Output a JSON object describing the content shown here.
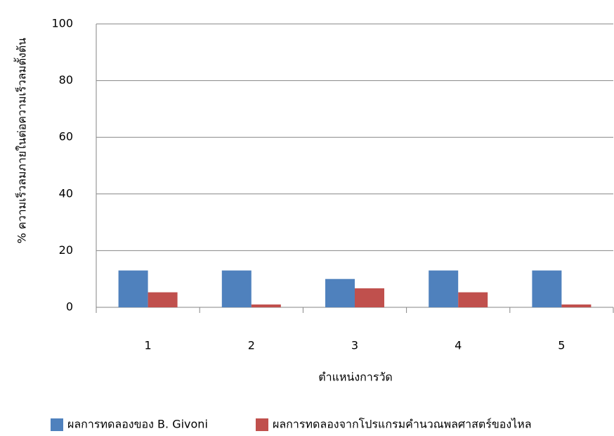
{
  "chart_data": {
    "type": "bar",
    "y_label": "% ความเร็วลมภายในต่อความเร็วลมตั้งต้น",
    "x_label": "ตำแหน่งการวัด",
    "categories": [
      "1",
      "2",
      "3",
      "4",
      "5"
    ],
    "series": [
      {
        "name": "ผลการทดลองของ B. Givoni",
        "color": "#4f81bd",
        "values": [
          13,
          13,
          10,
          13,
          13
        ]
      },
      {
        "name": "ผลการทดลองจากโปรแกรมคำนวณพลศาสตร์ของไหล",
        "color": "#c0504d",
        "values": [
          5.3,
          1,
          6.7,
          5.3,
          1
        ]
      }
    ],
    "ylim": [
      0,
      100
    ],
    "yticks": [
      0,
      20,
      40,
      60,
      80,
      100
    ],
    "grid": true,
    "legend": "bottom"
  }
}
